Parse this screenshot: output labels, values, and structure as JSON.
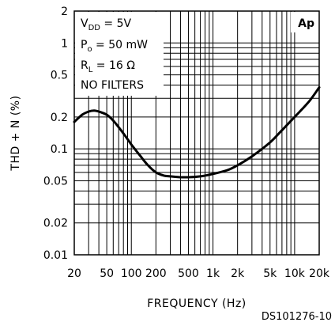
{
  "chart_data": {
    "type": "line",
    "xlabel": "FREQUENCY (Hz)",
    "ylabel": "THD + N (%)",
    "xscale": "log",
    "yscale": "log",
    "xlim": [
      20,
      20000
    ],
    "ylim": [
      0.01,
      2
    ],
    "grid": true,
    "x_tick_labels": [
      {
        "value": 20,
        "label": "20"
      },
      {
        "value": 50,
        "label": "50"
      },
      {
        "value": 100,
        "label": "100"
      },
      {
        "value": 200,
        "label": "200"
      },
      {
        "value": 500,
        "label": "500"
      },
      {
        "value": 1000,
        "label": "1k"
      },
      {
        "value": 2000,
        "label": "2k"
      },
      {
        "value": 5000,
        "label": "5k"
      },
      {
        "value": 10000,
        "label": "10k"
      },
      {
        "value": 20000,
        "label": "20k"
      }
    ],
    "y_tick_labels": [
      {
        "value": 2,
        "label": "2"
      },
      {
        "value": 1,
        "label": "1"
      },
      {
        "value": 0.5,
        "label": "0.5"
      },
      {
        "value": 0.2,
        "label": "0.2"
      },
      {
        "value": 0.1,
        "label": "0.1"
      },
      {
        "value": 0.05,
        "label": "0.05"
      },
      {
        "value": 0.02,
        "label": "0.02"
      },
      {
        "value": 0.01,
        "label": "0.01"
      }
    ],
    "series": [
      {
        "x": [
          20,
          25,
          30,
          35,
          40,
          50,
          60,
          80,
          100,
          130,
          160,
          200,
          250,
          300,
          400,
          500,
          700,
          1000,
          1500,
          2000,
          3000,
          5000,
          7000,
          10000,
          15000,
          20000
        ],
        "y": [
          0.18,
          0.21,
          0.225,
          0.23,
          0.225,
          0.21,
          0.185,
          0.14,
          0.11,
          0.085,
          0.07,
          0.06,
          0.056,
          0.055,
          0.054,
          0.054,
          0.055,
          0.058,
          0.063,
          0.07,
          0.085,
          0.115,
          0.15,
          0.2,
          0.28,
          0.38
        ]
      }
    ],
    "annotations": {
      "vdd": {
        "main": "V",
        "sub": "DD",
        "rest": " = 5V"
      },
      "po": {
        "main": "P",
        "sub": "o",
        "rest": " = 50 mW"
      },
      "rl": {
        "main": "R",
        "sub": "L",
        "rest": " = 16 Ω"
      },
      "filters": "NO FILTERS",
      "badge": "Ap"
    },
    "figure_id": "DS101276-10"
  }
}
